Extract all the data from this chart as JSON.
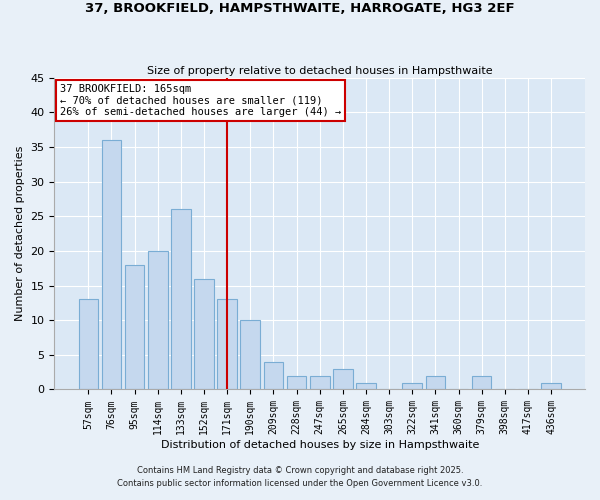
{
  "title_line1": "37, BROOKFIELD, HAMPSTHWAITE, HARROGATE, HG3 2EF",
  "title_line2": "Size of property relative to detached houses in Hampsthwaite",
  "xlabel": "Distribution of detached houses by size in Hampsthwaite",
  "ylabel": "Number of detached properties",
  "bar_labels": [
    "57sqm",
    "76sqm",
    "95sqm",
    "114sqm",
    "133sqm",
    "152sqm",
    "171sqm",
    "190sqm",
    "209sqm",
    "228sqm",
    "247sqm",
    "265sqm",
    "284sqm",
    "303sqm",
    "322sqm",
    "341sqm",
    "360sqm",
    "379sqm",
    "398sqm",
    "417sqm",
    "436sqm"
  ],
  "bar_values": [
    13,
    36,
    18,
    20,
    26,
    16,
    13,
    10,
    4,
    2,
    2,
    3,
    1,
    0,
    1,
    2,
    0,
    2,
    0,
    0,
    1
  ],
  "bar_color": "#c5d8ee",
  "bar_edge_color": "#7aadd4",
  "fig_background_color": "#e8f0f8",
  "plot_background_color": "#dbe8f5",
  "grid_color": "#ffffff",
  "annotation_box_text_line1": "37 BROOKFIELD: 165sqm",
  "annotation_box_text_line2": "← 70% of detached houses are smaller (119)",
  "annotation_box_text_line3": "26% of semi-detached houses are larger (44) →",
  "vline_x_index": 6,
  "vline_color": "#cc0000",
  "ylim": [
    0,
    45
  ],
  "yticks": [
    0,
    5,
    10,
    15,
    20,
    25,
    30,
    35,
    40,
    45
  ],
  "footer_line1": "Contains HM Land Registry data © Crown copyright and database right 2025.",
  "footer_line2": "Contains public sector information licensed under the Open Government Licence v3.0."
}
